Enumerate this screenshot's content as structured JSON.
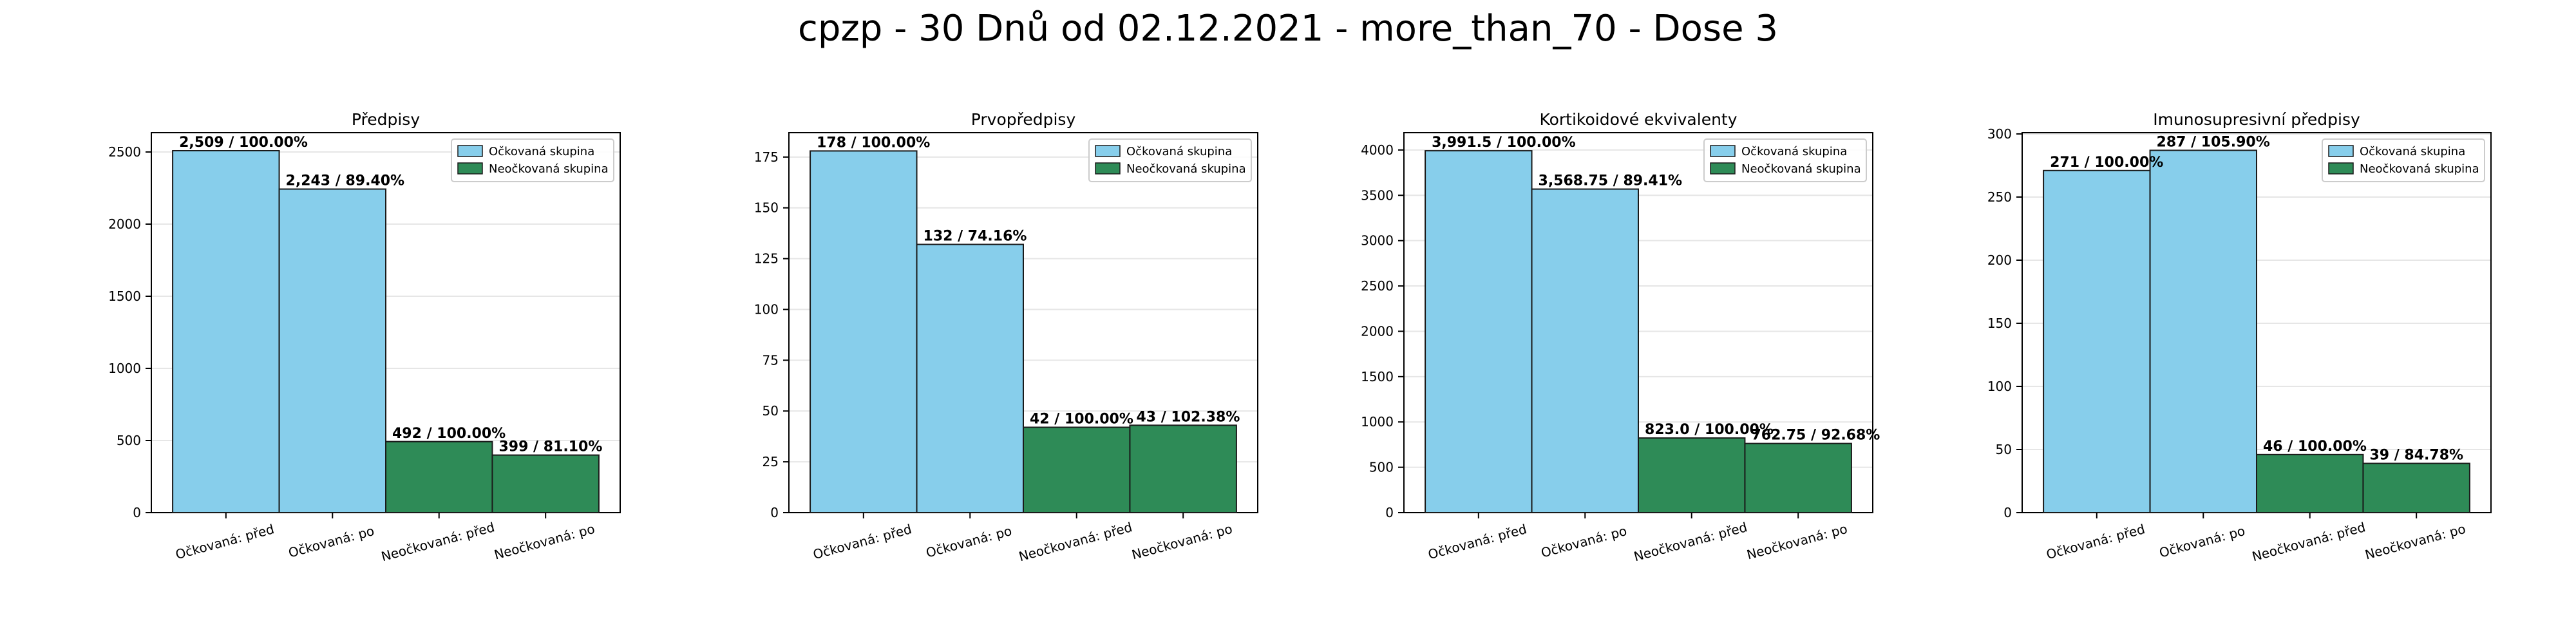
{
  "title": "cpzp - 30 Dnů od 02.12.2021 - more_than_70 - Dose 3",
  "colors": {
    "vaccinated": "#87ceeb",
    "unvaccinated": "#2e8b57",
    "edge": "#1a1a1a",
    "grid": "#e6e6e6"
  },
  "chart_data": [
    {
      "type": "bar",
      "title": "Předpisy",
      "categories": [
        "Očkovaná: před",
        "Očkovaná: po",
        "Neočkovaná: před",
        "Neočkovaná: po"
      ],
      "values": [
        2509,
        2243,
        492,
        399
      ],
      "groups": [
        "vaccinated",
        "vaccinated",
        "unvaccinated",
        "unvaccinated"
      ],
      "bar_labels": [
        "2,509 / 100.00%",
        "2,243 / 89.40%",
        "492 / 100.00%",
        "399 / 81.10%"
      ],
      "yticks": [
        0,
        500,
        1000,
        1500,
        2000,
        2500
      ],
      "ylim": [
        0,
        2634
      ],
      "legend": [
        "Očkovaná skupina",
        "Neočkovaná skupina"
      ],
      "legend_position": "upper right",
      "grid": true
    },
    {
      "type": "bar",
      "title": "Prvopředpisy",
      "categories": [
        "Očkovaná: před",
        "Očkovaná: po",
        "Neočkovaná: před",
        "Neočkovaná: po"
      ],
      "values": [
        178,
        132,
        42,
        43
      ],
      "groups": [
        "vaccinated",
        "vaccinated",
        "unvaccinated",
        "unvaccinated"
      ],
      "bar_labels": [
        "178 / 100.00%",
        "132 / 74.16%",
        "42 / 100.00%",
        "43 / 102.38%"
      ],
      "yticks": [
        0,
        25,
        50,
        75,
        100,
        125,
        150,
        175
      ],
      "ylim": [
        0,
        187
      ],
      "legend": [
        "Očkovaná skupina",
        "Neočkovaná skupina"
      ],
      "legend_position": "upper right",
      "grid": true
    },
    {
      "type": "bar",
      "title": "Kortikoidové ekvivalenty",
      "categories": [
        "Očkovaná: před",
        "Očkovaná: po",
        "Neočkovaná: před",
        "Neočkovaná: po"
      ],
      "values": [
        3991.5,
        3568.75,
        823.0,
        762.75
      ],
      "groups": [
        "vaccinated",
        "vaccinated",
        "unvaccinated",
        "unvaccinated"
      ],
      "bar_labels": [
        "3,991.5 / 100.00%",
        "3,568.75 / 89.41%",
        "823.0 / 100.00%",
        "762.75 / 92.68%"
      ],
      "yticks": [
        0,
        500,
        1000,
        1500,
        2000,
        2500,
        3000,
        3500,
        4000
      ],
      "ylim": [
        0,
        4191
      ],
      "legend": [
        "Očkovaná skupina",
        "Neočkovaná skupina"
      ],
      "legend_position": "upper right",
      "grid": true
    },
    {
      "type": "bar",
      "title": "Imunosupresivní předpisy",
      "categories": [
        "Očkovaná: před",
        "Očkovaná: po",
        "Neočkovaná: před",
        "Neočkovaná: po"
      ],
      "values": [
        271,
        287,
        46,
        39
      ],
      "groups": [
        "vaccinated",
        "vaccinated",
        "unvaccinated",
        "unvaccinated"
      ],
      "bar_labels": [
        "271 / 100.00%",
        "287 / 105.90%",
        "46 / 100.00%",
        "39 / 84.78%"
      ],
      "yticks": [
        0,
        50,
        100,
        150,
        200,
        250,
        300
      ],
      "ylim": [
        0,
        301
      ],
      "legend": [
        "Očkovaná skupina",
        "Neočkovaná skupina"
      ],
      "legend_position": "upper right",
      "grid": true
    }
  ]
}
